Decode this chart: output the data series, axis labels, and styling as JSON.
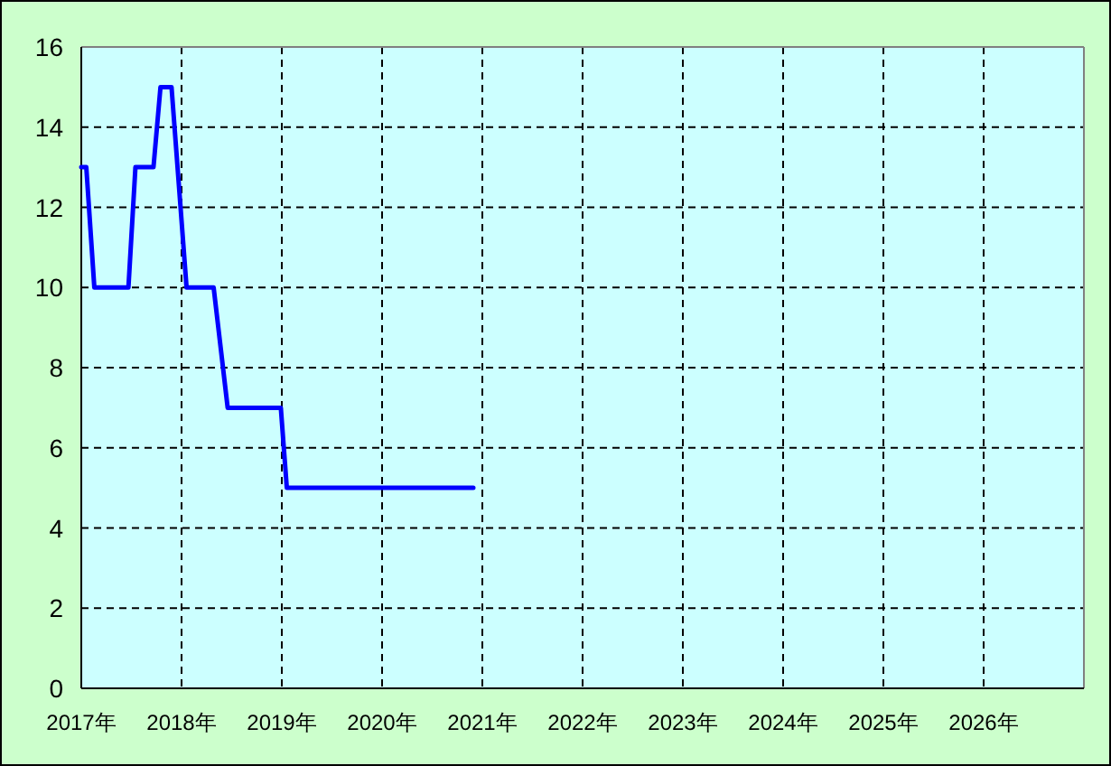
{
  "chart_data": {
    "type": "line",
    "x": [
      2017.0,
      2017.05,
      2017.13,
      2017.47,
      2017.54,
      2017.72,
      2017.79,
      2017.9,
      2018.05,
      2018.32,
      2018.46,
      2018.99,
      2019.05,
      2020.91
    ],
    "values": [
      13,
      13,
      10,
      10,
      13,
      13,
      15,
      15,
      10,
      10,
      7,
      7,
      5,
      5
    ],
    "color": "#0000ff",
    "xlim": [
      2017,
      2027
    ],
    "xticks": [
      {
        "value": 2017,
        "label": "2017年"
      },
      {
        "value": 2018,
        "label": "2018年"
      },
      {
        "value": 2019,
        "label": "2019年"
      },
      {
        "value": 2020,
        "label": "2020年"
      },
      {
        "value": 2021,
        "label": "2021年"
      },
      {
        "value": 2022,
        "label": "2022年"
      },
      {
        "value": 2023,
        "label": "2023年"
      },
      {
        "value": 2024,
        "label": "2024年"
      },
      {
        "value": 2025,
        "label": "2025年"
      },
      {
        "value": 2026,
        "label": "2026年"
      }
    ],
    "ylim": [
      0,
      16
    ],
    "yticks": [
      0,
      2,
      4,
      6,
      8,
      10,
      12,
      14,
      16
    ],
    "grid": true
  }
}
